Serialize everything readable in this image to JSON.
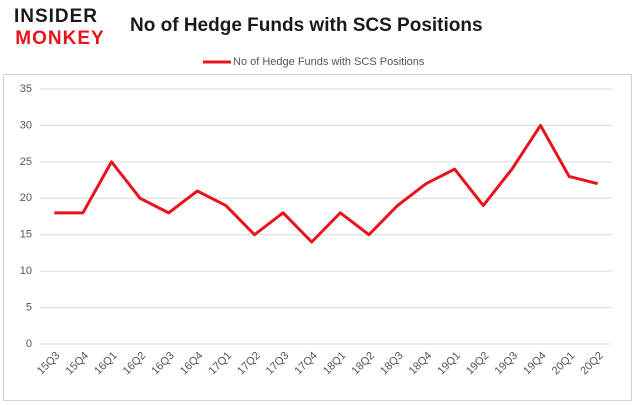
{
  "logo": [
    "INSIDER",
    "MONKEY"
  ],
  "chart_data": {
    "type": "line",
    "title": "No of Hedge Funds with SCS Positions",
    "categories": [
      "15Q3",
      "15Q4",
      "16Q1",
      "16Q2",
      "16Q3",
      "16Q4",
      "17Q1",
      "17Q2",
      "17Q3",
      "17Q4",
      "18Q1",
      "18Q2",
      "18Q3",
      "18Q4",
      "19Q1",
      "19Q2",
      "19Q3",
      "19Q4",
      "20Q1",
      "20Q2"
    ],
    "series": [
      {
        "name": "No of Hedge Funds with SCS Positions",
        "color": "#e8141c",
        "values": [
          18,
          18,
          25,
          20,
          18,
          21,
          19,
          15,
          18,
          14,
          18,
          15,
          19,
          22,
          24,
          19,
          24,
          30,
          23,
          22
        ]
      }
    ],
    "ylim": [
      0,
      35
    ],
    "yticks": [
      0,
      5,
      10,
      15,
      20,
      25,
      30,
      35
    ],
    "grid": true,
    "legend": "top"
  }
}
